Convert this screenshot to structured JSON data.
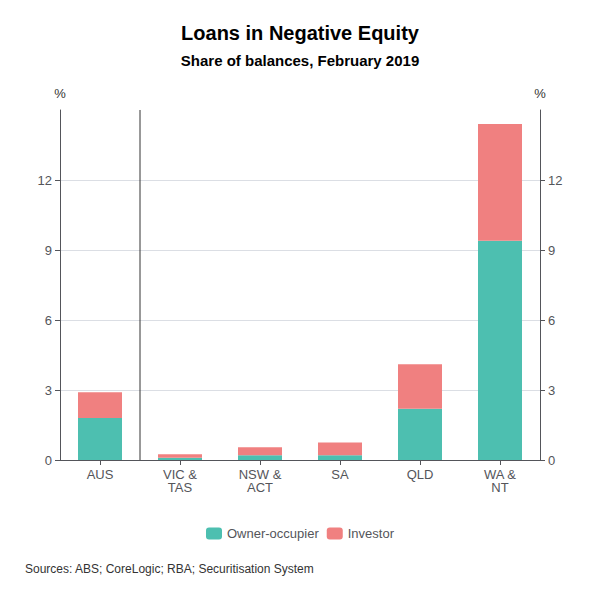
{
  "chart_data": {
    "type": "bar",
    "title": "Loans in Negative Equity",
    "subtitle": "Share of balances, February 2019",
    "source": "Sources: ABS; CoreLogic; RBA; Securitisation System",
    "categories": [
      "AUS",
      "VIC &\nTAS",
      "NSW &\nACT",
      "SA",
      "QLD",
      "WA &\nNT"
    ],
    "series": [
      {
        "name": "Owner-occupier",
        "color": "#4DBFB0",
        "values": [
          1.8,
          0.1,
          0.2,
          0.2,
          2.2,
          9.4
        ]
      },
      {
        "name": "Investor",
        "color": "#F08080",
        "values": [
          1.1,
          0.15,
          0.35,
          0.55,
          1.9,
          5.0
        ]
      }
    ],
    "stacked": true,
    "ylabel": "%",
    "y2label": "%",
    "ylim": [
      0,
      15
    ],
    "yticks": [
      0,
      3,
      6,
      9,
      12
    ],
    "y2lim": [
      0,
      15
    ],
    "y2ticks": [
      0,
      3,
      6,
      9,
      12
    ],
    "grid": true,
    "legend": "bottom"
  }
}
